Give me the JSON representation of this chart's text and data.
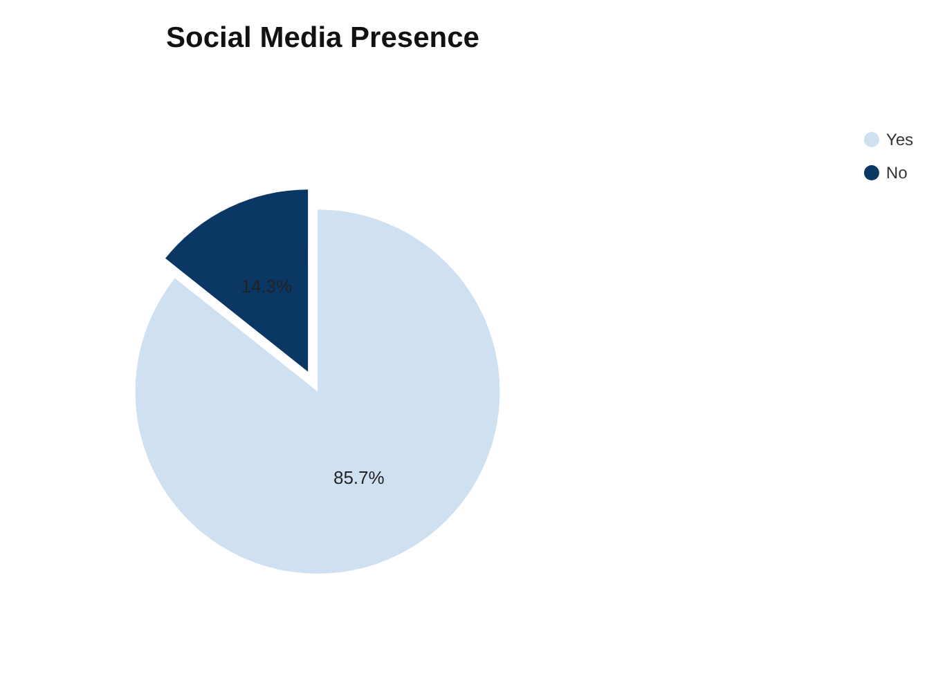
{
  "chart_data": {
    "type": "pie",
    "title": "Social Media Presence",
    "categories": [
      "Yes",
      "No"
    ],
    "values": [
      85.7,
      14.3
    ],
    "value_labels": [
      "85.7%",
      "14.3%"
    ],
    "colors": [
      "#cfe0f1",
      "#0b3764"
    ],
    "legend": "top right"
  }
}
